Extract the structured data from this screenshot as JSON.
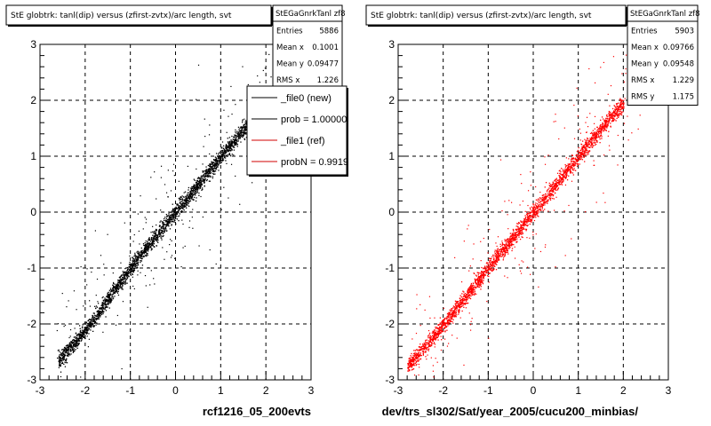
{
  "chart_data": [
    {
      "type": "scatter",
      "title": "StE globtrk: tanl(dip) versus (zfirst-zvtx)/arc length, svt",
      "xlabel": "rcf1216_05_200evts",
      "ylabel": "",
      "xlim": [
        -3,
        3
      ],
      "ylim": [
        -3,
        3
      ],
      "x_ticks": [
        "-3",
        "-2",
        "-1",
        "0",
        "1",
        "2",
        "3"
      ],
      "y_ticks": [
        "-3",
        "-2",
        "-1",
        "0",
        "1",
        "2",
        "3"
      ],
      "grid": true,
      "marker_color": "#000000",
      "stats_box": {
        "name": "StEGaGnrkTanl zf8",
        "rows": [
          {
            "label": "Entries",
            "value": "5886"
          },
          {
            "label": "Mean x",
            "value": "0.1001"
          },
          {
            "label": "Mean y",
            "value": "0.09477"
          },
          {
            "label": "RMS x",
            "value": "1.226"
          }
        ]
      },
      "legend": {
        "placement": "top-right",
        "entries": [
          {
            "label": "_file0 (new)",
            "color": "#000000"
          },
          {
            "label": "prob = 1.000000",
            "color": "#000000"
          },
          {
            "label": "_file1 (ref)",
            "color": "#d00000"
          },
          {
            "label": "probN = 0.991912",
            "color": "#d00000"
          }
        ]
      },
      "series": [
        {
          "x": [
            -2.6,
            -2.2,
            -1.8,
            -1.4,
            -1.0,
            -0.6,
            -0.2,
            0.2,
            0.6,
            1.0,
            1.4,
            1.8
          ],
          "y": [
            -2.65,
            -2.3,
            -1.9,
            -1.45,
            -1.0,
            -0.58,
            -0.19,
            0.2,
            0.6,
            1.0,
            1.38,
            1.75
          ]
        }
      ]
    },
    {
      "type": "scatter",
      "title": "StE globtrk: tanl(dip) versus (zfirst-zvtx)/arc length, svt",
      "xlabel": "dev/trs_sl302/Sat/year_2005/cucu200_minbias/",
      "ylabel": "",
      "xlim": [
        -3,
        3
      ],
      "ylim": [
        -3,
        3
      ],
      "x_ticks": [
        "-3",
        "-2",
        "-1",
        "0",
        "1",
        "2",
        "3"
      ],
      "y_ticks": [
        "-3",
        "-2",
        "-1",
        "0",
        "1",
        "2",
        "3"
      ],
      "grid": true,
      "marker_color": "#ff0000",
      "stats_box": {
        "name": "StEGaGnrkTanl zf8",
        "rows": [
          {
            "label": "Entries",
            "value": "5903"
          },
          {
            "label": "Mean x",
            "value": "0.09766"
          },
          {
            "label": "Mean y",
            "value": "0.09548"
          },
          {
            "label": "RMS x",
            "value": "1.229"
          },
          {
            "label": "RMS y",
            "value": "1.175"
          }
        ]
      },
      "series": [
        {
          "x": [
            -2.8,
            -2.4,
            -2.0,
            -1.6,
            -1.2,
            -0.8,
            -0.4,
            0.0,
            0.4,
            0.8,
            1.2,
            1.6,
            2.0
          ],
          "y": [
            -2.75,
            -2.4,
            -2.0,
            -1.6,
            -1.2,
            -0.8,
            -0.4,
            0.0,
            0.4,
            0.8,
            1.2,
            1.6,
            1.95
          ]
        }
      ]
    }
  ]
}
